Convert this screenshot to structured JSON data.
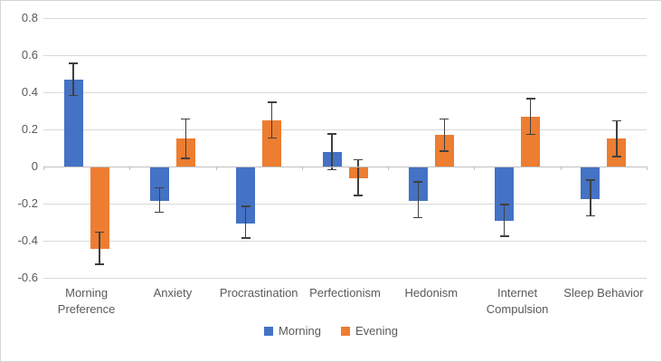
{
  "colors": {
    "morning_blue": "#4472C4",
    "evening_orange": "#ED7D31",
    "gridline": "#D9D9D9",
    "axis_line": "#BFBFBF",
    "error_bar": "#404040",
    "text": "#595959",
    "background": "#FFFFFF",
    "frame_border": "#D5D5D5"
  },
  "chart_data": {
    "type": "bar",
    "title": "",
    "xlabel": "",
    "ylabel": "",
    "categories": [
      "Morning Preference",
      "Anxiety",
      "Procrastination",
      "Perfectionism",
      "Hedonism",
      "Internet Compulsion",
      "Sleep Behavior"
    ],
    "category_label_lines": [
      [
        "Morning",
        "Preference"
      ],
      [
        "Anxiety"
      ],
      [
        "Procrastination"
      ],
      [
        "Perfectionism"
      ],
      [
        "Hedonism"
      ],
      [
        "Internet",
        "Compulsion"
      ],
      [
        "Sleep Behavior"
      ]
    ],
    "series": [
      {
        "name": "Morning",
        "color": "#4472C4",
        "values": [
          0.47,
          -0.18,
          -0.3,
          0.08,
          -0.18,
          -0.29,
          -0.17
        ],
        "error_bars": [
          0.09,
          0.07,
          0.09,
          0.1,
          0.1,
          0.09,
          0.1
        ]
      },
      {
        "name": "Evening",
        "color": "#ED7D31",
        "values": [
          -0.44,
          0.15,
          0.25,
          -0.06,
          0.17,
          0.27,
          0.15
        ],
        "error_bars": [
          0.09,
          0.11,
          0.1,
          0.1,
          0.09,
          0.1,
          0.1
        ]
      }
    ],
    "y_axis": {
      "min": -0.6,
      "max": 0.8,
      "tick_step": 0.2,
      "tick_labels": [
        "0.8",
        "0.6",
        "0.4",
        "0.2",
        "0",
        "-0.2",
        "-0.4",
        "-0.6"
      ]
    },
    "grid": true,
    "legend_position": "bottom",
    "legend": [
      "Morning",
      "Evening"
    ]
  }
}
